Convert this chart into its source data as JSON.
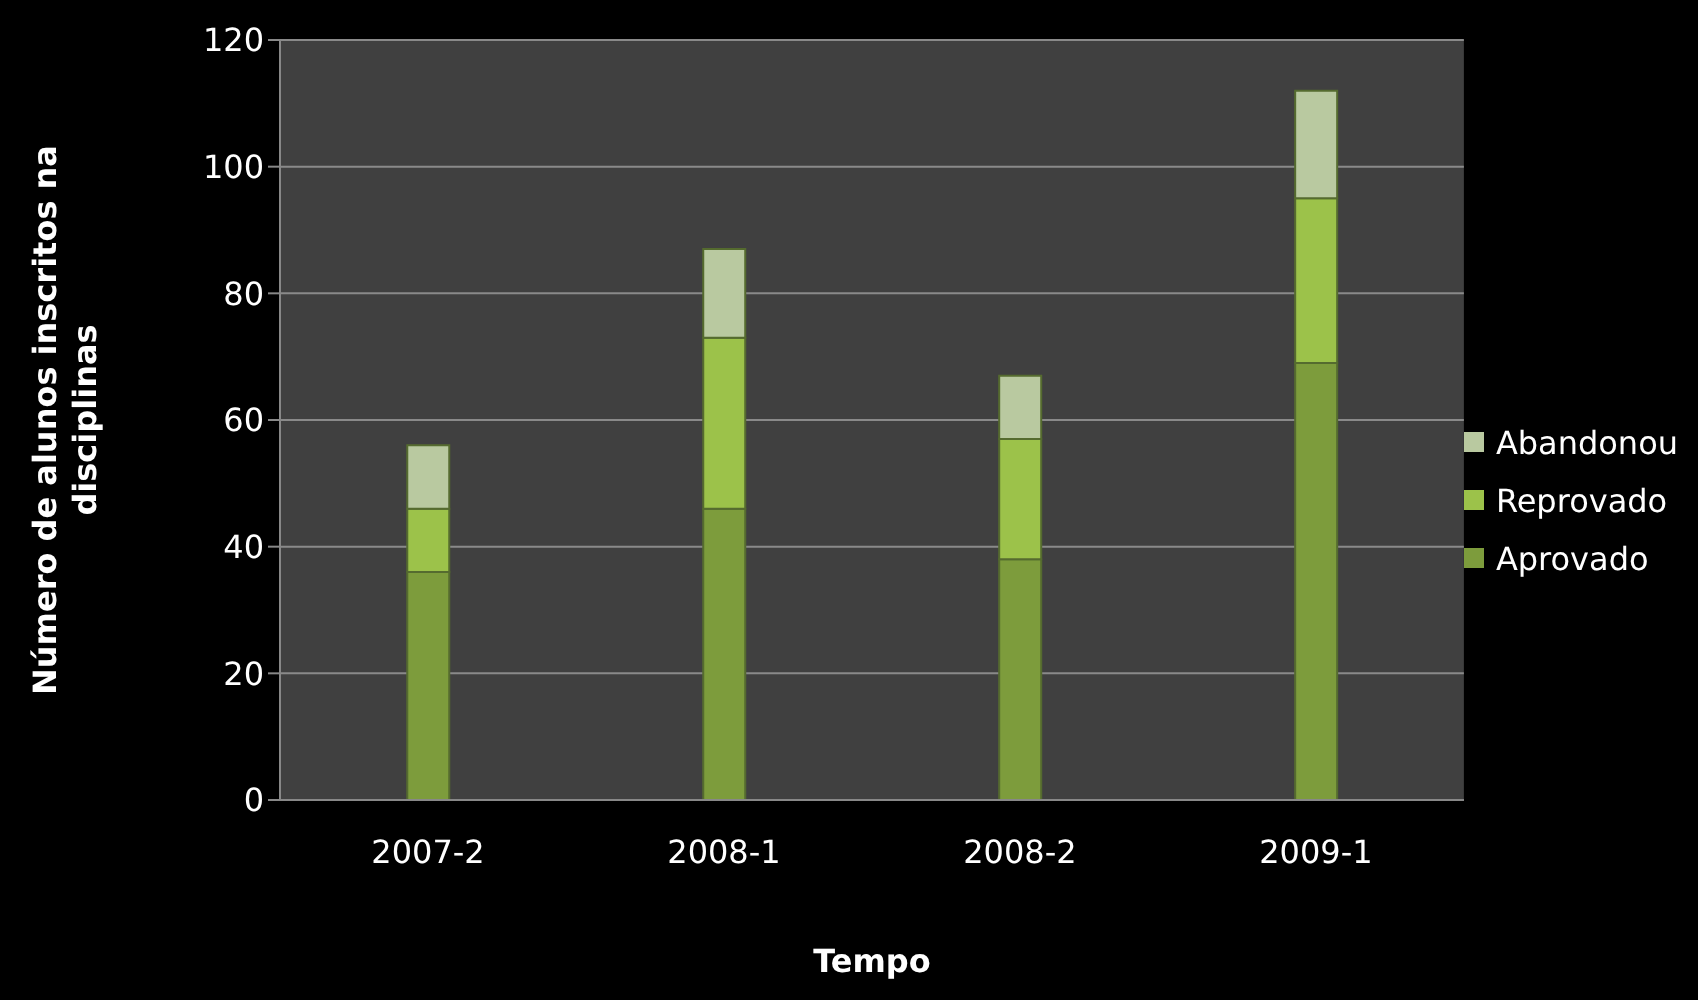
{
  "chart_data": {
    "type": "bar",
    "stacked": true,
    "xlabel": "Tempo",
    "ylabel": "Número de alunos inscritos na disciplinas",
    "categories": [
      "2007-2",
      "2008-1",
      "2008-2",
      "2009-1"
    ],
    "series": [
      {
        "name": "Aprovado",
        "color": "#7d9c3c",
        "values": [
          36,
          46,
          38,
          69
        ]
      },
      {
        "name": "Reprovado",
        "color": "#9cc24a",
        "values": [
          10,
          27,
          19,
          26
        ]
      },
      {
        "name": "Abandonou",
        "color": "#b9c9a0",
        "values": [
          10,
          14,
          10,
          17
        ]
      }
    ],
    "ylim": [
      0,
      120
    ],
    "yticks": [
      0,
      20,
      40,
      60,
      80,
      100,
      120
    ],
    "grid": "y",
    "legend": "right"
  }
}
